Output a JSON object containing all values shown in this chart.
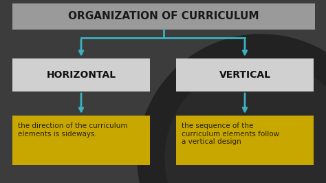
{
  "title": "ORGANIZATION OF CURRICULUM",
  "title_box_color": "#9a9a9a",
  "title_text_color": "#1a1a1a",
  "bg_color": "#3c3c3c",
  "bg_color2": "#555555",
  "node_box_color": "#d0d0d0",
  "node_text_color": "#111111",
  "desc_box_color": "#c8a800",
  "desc_text_color": "#2a2200",
  "arrow_color": "#3ab0c0",
  "left_label": "HORIZONTAL",
  "right_label": "VERTICAL",
  "left_desc": "the direction of the curriculum\nelements is sideways.",
  "right_desc": "the sequence of the\ncurriculum elements follow\na vertical design"
}
